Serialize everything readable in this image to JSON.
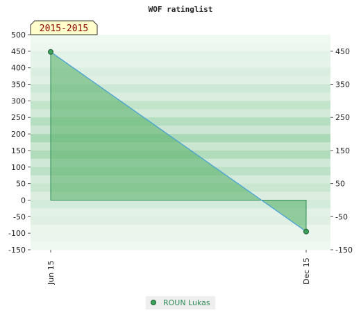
{
  "chart_data": {
    "type": "area",
    "title": "WOF ratinglist",
    "season_label": "2015-2015",
    "x": [
      "Jun 15",
      "Dec 15"
    ],
    "series": [
      {
        "name": "ROUN Lukas",
        "values": [
          448,
          -95
        ]
      }
    ],
    "ylim": [
      -150,
      500
    ],
    "y_ticks_left": [
      -150,
      -100,
      -50,
      0,
      50,
      100,
      150,
      200,
      250,
      300,
      350,
      400,
      450,
      500
    ],
    "y_ticks_right": [
      -150,
      -50,
      50,
      150,
      250,
      350,
      450
    ],
    "baseline": 0,
    "grid": "horizontal bands",
    "legend_position": "bottom-center",
    "colors": {
      "fill": "#5cb36d",
      "line": "#4aa3df",
      "outline": "#2e8b57",
      "marker": "#3aa05a"
    }
  }
}
